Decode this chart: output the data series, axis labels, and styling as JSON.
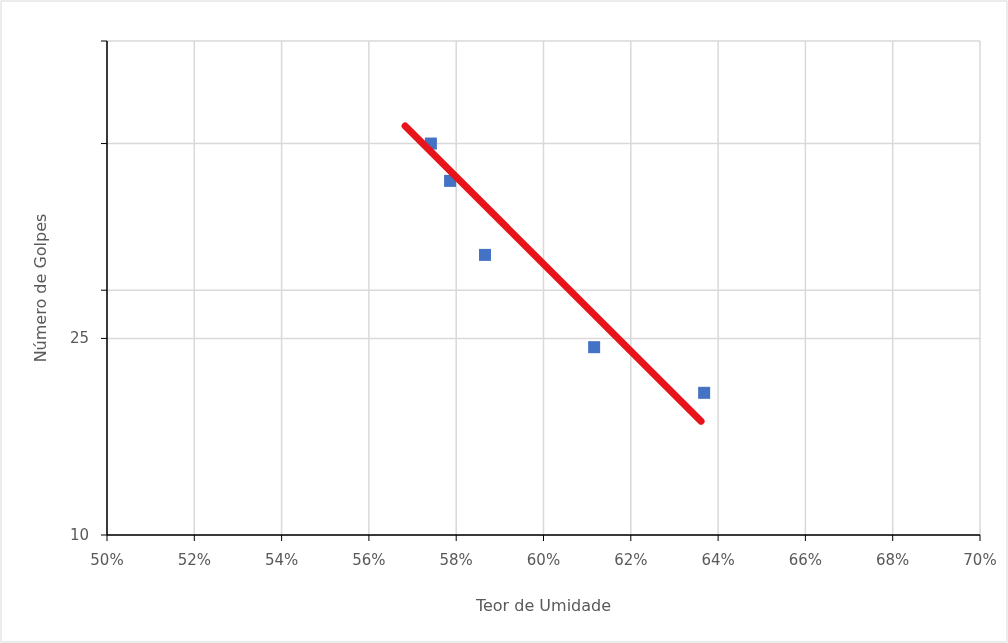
{
  "chart_data": {
    "type": "scatter",
    "xlabel": "Teor de Umidade",
    "ylabel": "Número de Golpes",
    "log": "y",
    "grid": true,
    "marker": "square",
    "xlim": [
      0.5,
      0.7
    ],
    "xticks": [
      {
        "value": 0.5,
        "label": "50%"
      },
      {
        "value": 0.52,
        "label": "52%"
      },
      {
        "value": 0.54,
        "label": "54%"
      },
      {
        "value": 0.56,
        "label": "56%"
      },
      {
        "value": 0.58,
        "label": "58%"
      },
      {
        "value": 0.6,
        "label": "60%"
      },
      {
        "value": 0.62,
        "label": "62%"
      },
      {
        "value": 0.64,
        "label": "64%"
      },
      {
        "value": 0.66,
        "label": "66%"
      },
      {
        "value": 0.68,
        "label": "68%"
      },
      {
        "value": 0.7,
        "label": "70%"
      }
    ],
    "ylim": [
      10,
      100
    ],
    "yticks": [
      10,
      25,
      {
        "value": 31.3,
        "label": null
      },
      {
        "value": 62,
        "label": null
      },
      {
        "value": 100,
        "label": null
      }
    ],
    "series": [
      {
        "color": "#4472c4",
        "x": [
          0.5742,
          0.5786,
          0.5866,
          0.6116,
          0.6368
        ],
        "values": [
          62,
          52.1,
          36.9,
          24,
          19.4
        ]
      },
      {
        "type": "line",
        "color": "#e8141c",
        "x": [
          0.5683,
          0.6361
        ],
        "values": [
          67.3,
          17
        ],
        "marker": "none"
      }
    ]
  }
}
